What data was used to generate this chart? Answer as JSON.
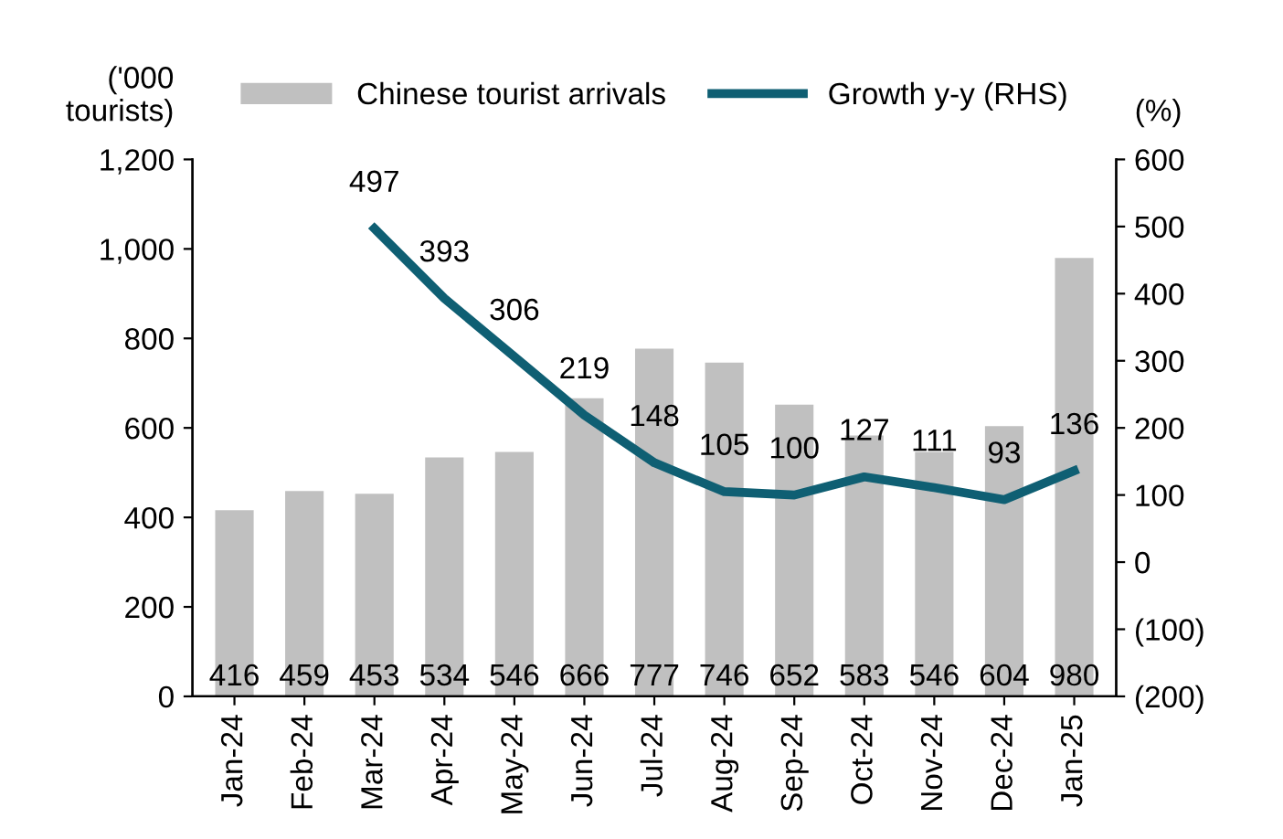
{
  "chart_data": {
    "type": "bar",
    "categories": [
      "Jan-24",
      "Feb-24",
      "Mar-24",
      "Apr-24",
      "May-24",
      "Jun-24",
      "Jul-24",
      "Aug-24",
      "Sep-24",
      "Oct-24",
      "Nov-24",
      "Dec-24",
      "Jan-25"
    ],
    "ylabel": "('000\ntourists)",
    "y2label": "(%)",
    "series": [
      {
        "name": "Chinese tourist arrivals",
        "color": "#c0c0c0",
        "values": [
          416,
          459,
          453,
          534,
          546,
          666,
          777,
          746,
          652,
          583,
          546,
          604,
          980
        ]
      },
      {
        "name": "Growth y-y (RHS)",
        "type": "line",
        "axis": "y2",
        "color": "#0f5f73",
        "values": [
          null,
          null,
          497,
          393,
          306,
          219,
          148,
          105,
          100,
          127,
          111,
          93,
          136
        ]
      }
    ],
    "ylim": [
      0,
      1200
    ],
    "yticks": [
      0,
      200,
      400,
      600,
      800,
      {
        "value": 1000,
        "label": "1,000"
      },
      {
        "value": 1200,
        "label": "1,200"
      }
    ],
    "y2lim": [
      -200,
      600
    ],
    "y2ticks": [
      {
        "value": -200,
        "label": "(200)"
      },
      {
        "value": -100,
        "label": "(100)"
      },
      0,
      100,
      200,
      300,
      400,
      500,
      600
    ],
    "data_labels": true,
    "legend": "top",
    "grid": false,
    "marker": "none",
    "line_style": "solid"
  }
}
